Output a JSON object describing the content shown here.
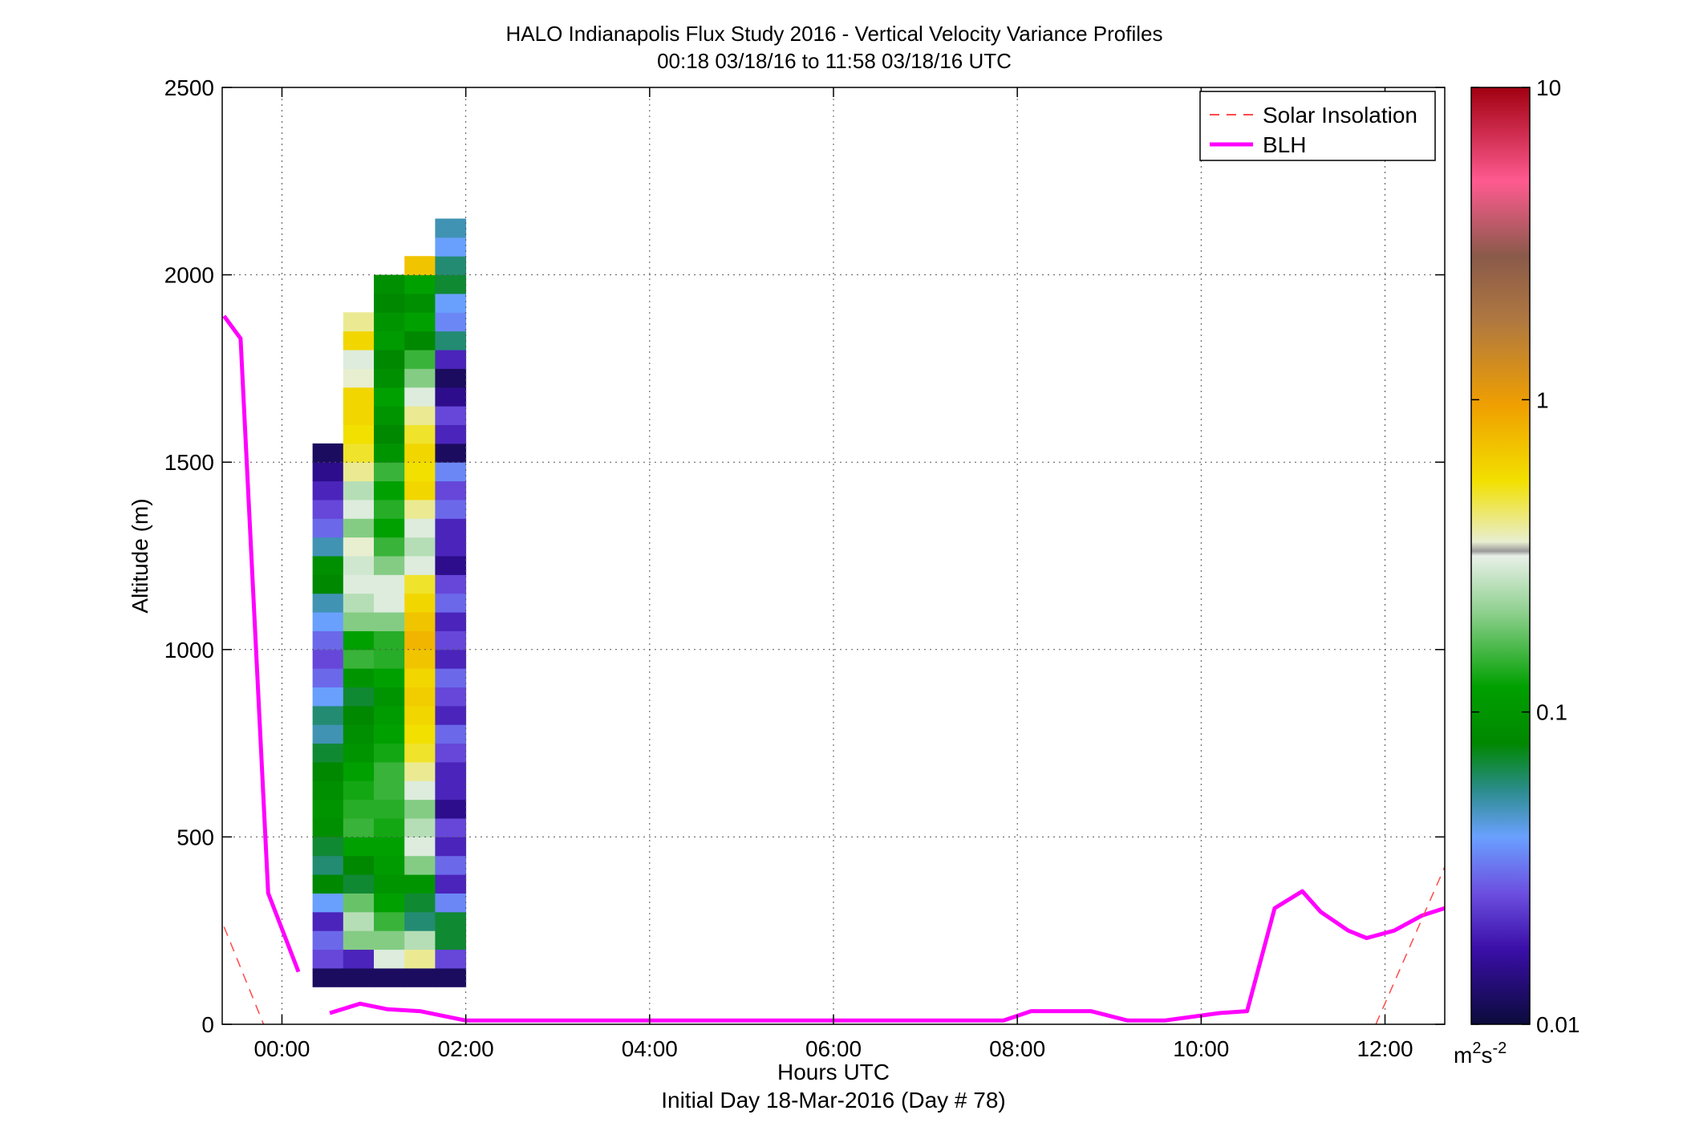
{
  "chart_data": {
    "type": "heatmap",
    "title": "HALO Indianapolis Flux Study 2016 - Vertical Velocity Variance Profiles",
    "subtitle": "00:18 03/18/16 to 11:58 03/18/16  UTC",
    "xlabel": "Hours UTC",
    "xlabel2": "Initial Day 18-Mar-2016 (Day # 78)",
    "ylabel": "Altitude (m)",
    "xlim": [
      -0.65,
      12.65
    ],
    "ylim": [
      0,
      2500
    ],
    "grid": true,
    "x_ticks": [
      {
        "value": 0,
        "label": "00:00"
      },
      {
        "value": 2,
        "label": "02:00"
      },
      {
        "value": 4,
        "label": "04:00"
      },
      {
        "value": 6,
        "label": "06:00"
      },
      {
        "value": 8,
        "label": "08:00"
      },
      {
        "value": 10,
        "label": "10:00"
      },
      {
        "value": 12,
        "label": "12:00"
      }
    ],
    "y_ticks": [
      {
        "value": 0,
        "label": "0"
      },
      {
        "value": 500,
        "label": "500"
      },
      {
        "value": 1000,
        "label": "1000"
      },
      {
        "value": 1500,
        "label": "1500"
      },
      {
        "value": 2000,
        "label": "2000"
      },
      {
        "value": 2500,
        "label": "2500"
      }
    ],
    "colorbar": {
      "scale": "log",
      "range": [
        0.01,
        10
      ],
      "ticks": [
        {
          "value": 0.01,
          "label": "0.01"
        },
        {
          "value": 0.1,
          "label": "0.1"
        },
        {
          "value": 1,
          "label": "1"
        },
        {
          "value": 10,
          "label": "10"
        }
      ],
      "unit_base": "m",
      "unit_sup1": "2",
      "unit_mid": "s",
      "unit_sup2": "-2"
    },
    "legend": {
      "position": "top-right",
      "entries": [
        {
          "label": "Solar Insolation",
          "style": "dashed",
          "color": "#ff4a4a"
        },
        {
          "label": "BLH",
          "style": "solid",
          "color": "#ff00ff"
        }
      ]
    },
    "heatmap": {
      "x_start": 0.333,
      "x_step": 0.3333,
      "z_bottom": 100,
      "z_step": 50,
      "columns": [
        [
          0.012,
          0.025,
          0.03,
          0.02,
          0.04,
          0.08,
          0.06,
          0.07,
          0.09,
          0.1,
          0.09,
          0.08,
          0.07,
          0.05,
          0.06,
          0.04,
          0.03,
          0.025,
          0.03,
          0.04,
          0.05,
          0.08,
          0.09,
          0.05,
          0.03,
          0.025,
          0.02,
          0.015,
          0.012
        ],
        [
          0.012,
          0.02,
          0.2,
          0.25,
          0.18,
          0.07,
          0.08,
          0.12,
          0.15,
          0.14,
          0.13,
          0.12,
          0.1,
          0.09,
          0.08,
          0.07,
          0.1,
          0.15,
          0.12,
          0.2,
          0.25,
          0.3,
          0.28,
          0.35,
          0.2,
          0.3,
          0.25,
          0.4,
          0.5,
          0.55,
          0.6,
          0.6,
          0.35,
          0.3,
          0.6,
          0.4
        ],
        [
          0.012,
          0.3,
          0.2,
          0.15,
          0.12,
          0.1,
          0.11,
          0.12,
          0.13,
          0.14,
          0.15,
          0.15,
          0.13,
          0.12,
          0.11,
          0.1,
          0.12,
          0.14,
          0.14,
          0.2,
          0.3,
          0.3,
          0.2,
          0.15,
          0.12,
          0.14,
          0.12,
          0.15,
          0.1,
          0.08,
          0.1,
          0.12,
          0.09,
          0.08,
          0.11,
          0.1,
          0.08,
          0.09
        ],
        [
          0.012,
          0.4,
          0.25,
          0.06,
          0.07,
          0.1,
          0.2,
          0.3,
          0.25,
          0.2,
          0.3,
          0.4,
          0.5,
          0.55,
          0.6,
          0.65,
          0.6,
          0.7,
          0.8,
          0.7,
          0.6,
          0.5,
          0.3,
          0.25,
          0.3,
          0.4,
          0.6,
          0.55,
          0.6,
          0.5,
          0.4,
          0.3,
          0.2,
          0.15,
          0.08,
          0.12,
          0.09,
          0.12,
          0.7
        ],
        [
          0.012,
          0.025,
          0.07,
          0.07,
          0.035,
          0.02,
          0.03,
          0.02,
          0.025,
          0.015,
          0.02,
          0.02,
          0.025,
          0.03,
          0.02,
          0.025,
          0.03,
          0.02,
          0.025,
          0.02,
          0.03,
          0.025,
          0.015,
          0.02,
          0.02,
          0.03,
          0.025,
          0.035,
          0.012,
          0.02,
          0.025,
          0.015,
          0.012,
          0.02,
          0.06,
          0.035,
          0.04,
          0.07,
          0.06,
          0.04,
          0.05
        ]
      ]
    },
    "series": [
      {
        "name": "BLH",
        "x": [
          -0.63,
          -0.45,
          -0.15,
          0.18,
          null,
          0.52,
          0.85,
          1.15,
          1.5,
          2.0,
          3.0,
          4.0,
          5.0,
          6.0,
          7.0,
          7.85,
          8.15,
          8.8,
          9.2,
          9.6,
          10.2,
          10.5,
          10.8,
          11.1,
          11.3,
          11.6,
          11.8,
          12.1,
          12.4,
          12.65
        ],
        "y": [
          1890,
          1830,
          350,
          140,
          null,
          30,
          55,
          40,
          35,
          10,
          10,
          10,
          10,
          10,
          10,
          10,
          35,
          35,
          10,
          10,
          30,
          35,
          310,
          355,
          300,
          250,
          230,
          250,
          290,
          310
        ]
      },
      {
        "name": "Solar Insolation",
        "x": [
          -0.63,
          -0.2,
          null,
          11.9,
          12.65
        ],
        "y": [
          260,
          0,
          null,
          0,
          420
        ]
      }
    ]
  }
}
